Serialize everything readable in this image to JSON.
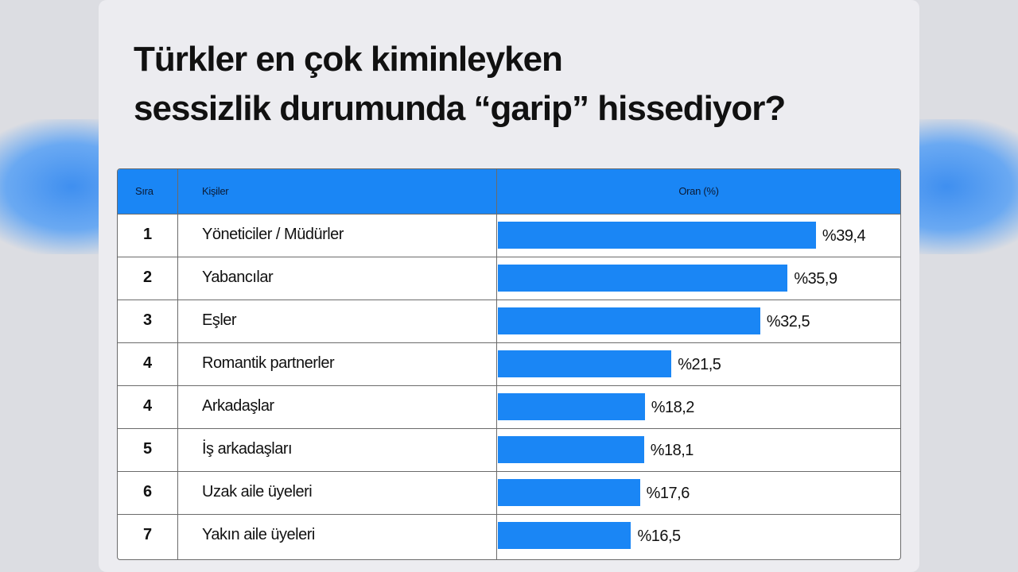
{
  "title_lines": [
    "Türkler en çok kiminleyken",
    "sessizlik durumunda “garip” hissediyor?"
  ],
  "table": {
    "headers": {
      "rank": "Sıra",
      "person": "Kişiler",
      "rate": "Oran (%)"
    }
  },
  "colors": {
    "accent": "#1a86f5",
    "page_background": "#ececf0"
  },
  "chart_data": {
    "type": "bar",
    "orientation": "horizontal",
    "title": "Türkler en çok kiminleyken sessizlik durumunda “garip” hissediyor?",
    "xlabel": "Oran (%)",
    "ylabel": "Kişiler",
    "xlim": [
      0,
      50
    ],
    "ranks": [
      "1",
      "2",
      "3",
      "4",
      "4",
      "5",
      "6",
      "7"
    ],
    "categories": [
      "Yöneticiler / Müdürler",
      "Yabancılar",
      "Eşler",
      "Romantik partnerler",
      "Arkadaşlar",
      "İş arkadaşları",
      "Uzak aile üyeleri",
      "Yakın aile üyeleri"
    ],
    "values": [
      39.4,
      35.9,
      32.5,
      21.5,
      18.2,
      18.1,
      17.6,
      16.5
    ],
    "value_labels": [
      "%39,4",
      "%35,9",
      "%32,5",
      "%21,5",
      "%18,2",
      "%18,1",
      "%17,6",
      "%16,5"
    ],
    "grid": false,
    "legend": "none"
  }
}
